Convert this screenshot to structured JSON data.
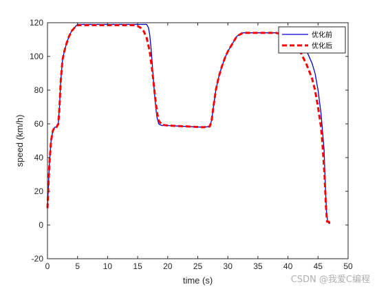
{
  "chart_data": {
    "type": "line",
    "xlabel": "time (s)",
    "ylabel": "speed (km/h)",
    "xlim": [
      0,
      50
    ],
    "ylim": [
      -20,
      120
    ],
    "xticks": [
      0,
      5,
      10,
      15,
      20,
      25,
      30,
      35,
      40,
      45,
      50
    ],
    "yticks": [
      -20,
      0,
      20,
      40,
      60,
      80,
      100,
      120
    ],
    "grid": false,
    "legend_position": "top-right",
    "series": [
      {
        "name": "优化前",
        "color": "#0000cc",
        "style": "solid",
        "x": [
          0,
          0.3,
          0.6,
          0.9,
          1.2,
          1.5,
          1.8,
          2.0,
          2.2,
          2.5,
          2.8,
          3.2,
          3.6,
          4.0,
          4.5,
          5.0,
          8.0,
          12.0,
          16.0,
          16.5,
          16.8,
          17.0,
          17.2,
          17.4,
          17.6,
          17.8,
          18.0,
          18.2,
          18.5,
          19.0,
          20.0,
          23.0,
          26.0,
          27.0,
          27.3,
          27.6,
          28.0,
          28.5,
          29.0,
          29.5,
          30.0,
          30.5,
          31.0,
          31.5,
          32.0,
          32.5,
          35.0,
          38.0,
          40.0,
          41.0,
          42.0,
          43.0,
          44.0,
          44.5,
          45.0,
          45.5,
          46.0,
          46.2,
          46.4,
          46.6,
          46.8,
          47.0
        ],
        "y": [
          10,
          35,
          50,
          56,
          58,
          58,
          60,
          70,
          85,
          98,
          103,
          108,
          112,
          115,
          117,
          119,
          119,
          119,
          119,
          119,
          117,
          113,
          106,
          97,
          87,
          78,
          70,
          64,
          60,
          59,
          59,
          58.5,
          58,
          58.5,
          62,
          70,
          80,
          88,
          94,
          99,
          103,
          106,
          109,
          112,
          113,
          114,
          114,
          114,
          113.5,
          112,
          109,
          104,
          96,
          90,
          80,
          66,
          45,
          25,
          8,
          2,
          1,
          1
        ]
      },
      {
        "name": "优化后",
        "color": "#ff0000",
        "style": "dashed",
        "x": [
          0,
          0.3,
          0.6,
          0.9,
          1.2,
          1.5,
          1.8,
          2.0,
          2.2,
          2.5,
          2.8,
          3.2,
          3.6,
          4.0,
          4.5,
          5.0,
          8.0,
          12.0,
          14.5,
          15.0,
          15.5,
          16.0,
          16.5,
          17.0,
          17.3,
          17.6,
          17.9,
          18.2,
          18.5,
          19.0,
          20.0,
          23.0,
          26.0,
          27.0,
          27.3,
          27.6,
          28.0,
          28.5,
          29.0,
          29.5,
          30.0,
          30.5,
          31.0,
          31.5,
          32.0,
          32.5,
          35.0,
          38.0,
          39.0,
          40.0,
          41.0,
          42.0,
          43.0,
          44.0,
          44.5,
          45.0,
          45.5,
          45.8,
          46.1,
          46.3,
          46.5,
          46.8,
          47.0
        ],
        "y": [
          10,
          35,
          50,
          56,
          58,
          58,
          60,
          70,
          85,
          98,
          103,
          108,
          112,
          115,
          117,
          118.5,
          118.5,
          118.5,
          118.5,
          118,
          117,
          115,
          111,
          103,
          95,
          86,
          76,
          67,
          62,
          59.5,
          59,
          58.5,
          58,
          58.5,
          62,
          70,
          80,
          88,
          94,
          99,
          103,
          106,
          109,
          112,
          113,
          114,
          114,
          114,
          113,
          111,
          108,
          103,
          96,
          87,
          80,
          70,
          58,
          45,
          28,
          12,
          2,
          2,
          0
        ]
      }
    ]
  },
  "watermark": "CSDN @我爱C编程"
}
